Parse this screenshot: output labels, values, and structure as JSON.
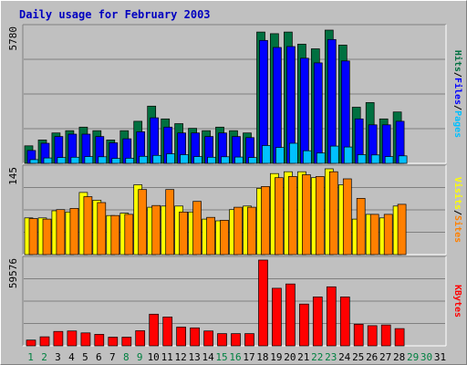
{
  "title": "Daily usage for February 2003",
  "colors": {
    "background": "#c0c0c0",
    "title": "#0000c0",
    "hits": "#007040",
    "files": "#0000ff",
    "pages": "#00c0ff",
    "visits": "#ffff00",
    "sites": "#ff8000",
    "kbytes": "#ff0000",
    "weekday_label": "#000000",
    "weekend_label": "#008040"
  },
  "labels": {
    "pages": "Pages",
    "files": "Files",
    "hits": "Hits",
    "sites": "Sites",
    "visits": "Visits",
    "kbytes": "KBytes",
    "separator": "/"
  },
  "chart_data": [
    {
      "type": "bar",
      "title": "Daily usage for February 2003",
      "ymax_label": "5780",
      "ylim": [
        0,
        5780
      ],
      "categories": [
        "1",
        "2",
        "3",
        "4",
        "5",
        "6",
        "7",
        "8",
        "9",
        "10",
        "11",
        "12",
        "13",
        "14",
        "15",
        "16",
        "17",
        "18",
        "19",
        "20",
        "21",
        "22",
        "23",
        "24",
        "25",
        "26",
        "27",
        "28",
        "29",
        "30",
        "31"
      ],
      "weekend_days": [
        "1",
        "2",
        "8",
        "9",
        "15",
        "16",
        "22",
        "23",
        "29",
        "30"
      ],
      "grid": true,
      "series": [
        {
          "name": "Hits",
          "values": [
            750,
            1000,
            1300,
            1400,
            1550,
            1400,
            1000,
            1400,
            1800,
            2450,
            1900,
            1700,
            1500,
            1400,
            1550,
            1400,
            1300,
            5620,
            5550,
            5620,
            5100,
            4900,
            5700,
            5060,
            2400,
            2600,
            1900,
            2200,
            null,
            null,
            null
          ]
        },
        {
          "name": "Files",
          "values": [
            550,
            860,
            1150,
            1250,
            1250,
            1150,
            880,
            1050,
            1350,
            1950,
            1550,
            1300,
            1300,
            1150,
            1300,
            1150,
            1100,
            5260,
            4960,
            5000,
            4500,
            4300,
            5300,
            4380,
            1900,
            1650,
            1650,
            1800,
            null,
            null,
            null
          ]
        },
        {
          "name": "Pages",
          "values": [
            160,
            230,
            250,
            260,
            290,
            280,
            210,
            220,
            300,
            340,
            410,
            370,
            290,
            260,
            280,
            270,
            250,
            760,
            680,
            860,
            540,
            440,
            740,
            700,
            370,
            360,
            290,
            320,
            null,
            null,
            null
          ]
        }
      ]
    },
    {
      "type": "bar",
      "ymax_label": "145",
      "ylim": [
        0,
        145
      ],
      "categories": [
        "1",
        "2",
        "3",
        "4",
        "5",
        "6",
        "7",
        "8",
        "9",
        "10",
        "11",
        "12",
        "13",
        "14",
        "15",
        "16",
        "17",
        "18",
        "19",
        "20",
        "21",
        "22",
        "23",
        "24",
        "25",
        "26",
        "27",
        "28",
        "29",
        "30",
        "31"
      ],
      "grid": true,
      "series": [
        {
          "name": "Visits",
          "values": [
            62,
            62,
            74,
            72,
            105,
            92,
            66,
            70,
            118,
            80,
            82,
            82,
            72,
            60,
            57,
            76,
            82,
            112,
            137,
            140,
            140,
            130,
            145,
            118,
            60,
            68,
            62,
            82,
            null,
            null,
            null
          ]
        },
        {
          "name": "Sites",
          "values": [
            61,
            60,
            76,
            78,
            98,
            88,
            66,
            68,
            110,
            83,
            110,
            72,
            90,
            63,
            58,
            80,
            80,
            115,
            130,
            132,
            135,
            132,
            140,
            128,
            95,
            68,
            68,
            85,
            null,
            null,
            null
          ]
        }
      ]
    },
    {
      "type": "bar",
      "ymax_label": "59576",
      "ylim": [
        0,
        59576
      ],
      "categories": [
        "1",
        "2",
        "3",
        "4",
        "5",
        "6",
        "7",
        "8",
        "9",
        "10",
        "11",
        "12",
        "13",
        "14",
        "15",
        "16",
        "17",
        "18",
        "19",
        "20",
        "21",
        "22",
        "23",
        "24",
        "25",
        "26",
        "27",
        "28",
        "29",
        "30",
        "31"
      ],
      "grid": true,
      "series": [
        {
          "name": "KBytes",
          "values": [
            4000,
            6300,
            10000,
            10300,
            9000,
            8000,
            6000,
            6000,
            10500,
            22000,
            20000,
            13000,
            12500,
            10300,
            8500,
            8500,
            8500,
            59576,
            40000,
            43000,
            29000,
            34000,
            41000,
            34000,
            15000,
            14000,
            14500,
            12000,
            null,
            null,
            null
          ]
        }
      ]
    }
  ]
}
